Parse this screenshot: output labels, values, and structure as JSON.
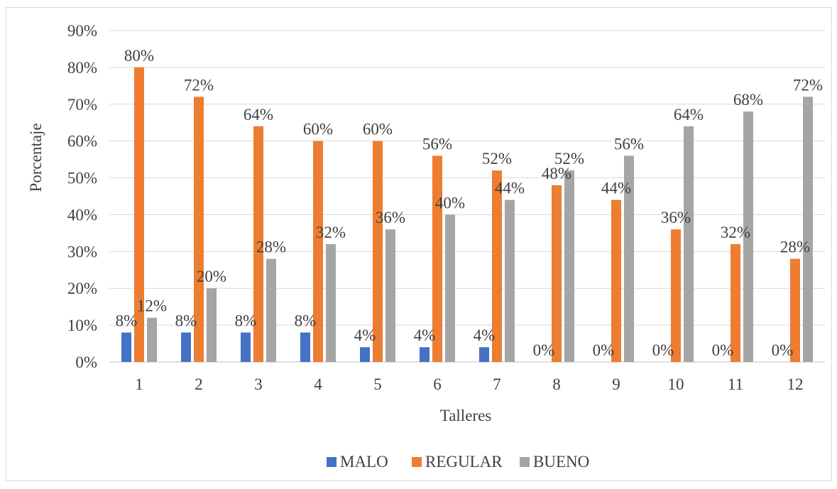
{
  "chart_data": {
    "type": "bar",
    "title": "",
    "xlabel": "Talleres",
    "ylabel": "Porcentaje",
    "ylim": [
      0,
      90
    ],
    "y_ticks": [
      "0%",
      "10%",
      "20%",
      "30%",
      "40%",
      "50%",
      "60%",
      "70%",
      "80%",
      "90%"
    ],
    "grid": true,
    "legend_position": "bottom",
    "categories": [
      "1",
      "2",
      "3",
      "4",
      "5",
      "6",
      "7",
      "8",
      "9",
      "10",
      "11",
      "12"
    ],
    "series": [
      {
        "name": "MALO",
        "color": "#4472c4",
        "values": [
          8,
          8,
          8,
          8,
          4,
          4,
          4,
          0,
          0,
          0,
          0,
          0
        ],
        "labels": [
          "8%",
          "8%",
          "8%",
          "8%",
          "4%",
          "4%",
          "4%",
          "0%",
          "0%",
          "0%",
          "0%",
          "0%"
        ]
      },
      {
        "name": "REGULAR",
        "color": "#ed7d31",
        "values": [
          80,
          72,
          64,
          60,
          60,
          56,
          52,
          48,
          44,
          36,
          32,
          28
        ],
        "labels": [
          "80%",
          "72%",
          "64%",
          "60%",
          "60%",
          "56%",
          "52%",
          "48%",
          "44%",
          "36%",
          "32%",
          "28%"
        ]
      },
      {
        "name": "BUENO",
        "color": "#a5a5a5",
        "values": [
          12,
          20,
          28,
          32,
          36,
          40,
          44,
          52,
          56,
          64,
          68,
          72
        ],
        "labels": [
          "12%",
          "20%",
          "28%",
          "32%",
          "36%",
          "40%",
          "44%",
          "52%",
          "56%",
          "64%",
          "68%",
          "72%"
        ]
      }
    ]
  }
}
